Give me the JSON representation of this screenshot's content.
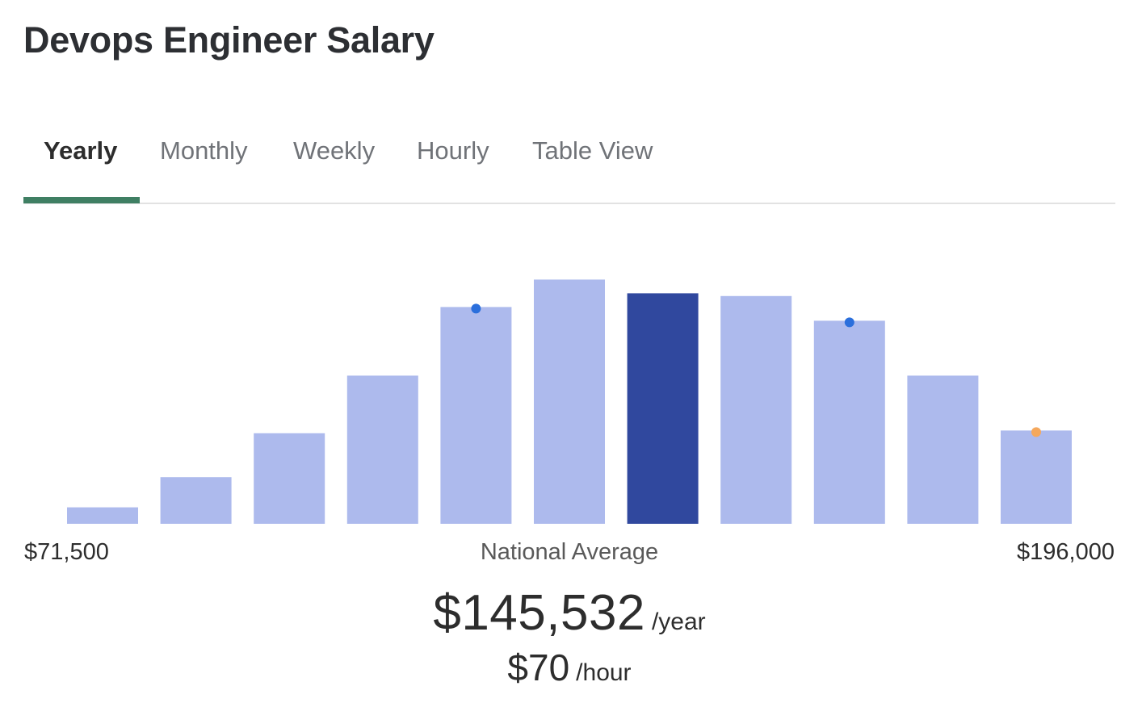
{
  "page": {
    "title": "Devops Engineer Salary"
  },
  "tabs": [
    {
      "label": "Yearly",
      "active": true
    },
    {
      "label": "Monthly",
      "active": false
    },
    {
      "label": "Weekly",
      "active": false
    },
    {
      "label": "Hourly",
      "active": false
    },
    {
      "label": "Table View",
      "active": false
    }
  ],
  "chart_data": {
    "type": "bar",
    "categories": [
      "",
      "",
      "",
      "",
      "",
      "",
      "",
      "",
      "",
      "",
      ""
    ],
    "values": [
      6,
      17,
      33,
      54,
      79,
      89,
      84,
      83,
      74,
      54,
      34
    ],
    "highlight_index": 6,
    "markers": [
      {
        "index": 4,
        "color": "#2b6fdc"
      },
      {
        "index": 8,
        "color": "#2b6fdc"
      },
      {
        "index": 10,
        "color": "#f5a85c"
      }
    ],
    "ylim": [
      0,
      100
    ],
    "colors": {
      "bar": "#adbaed",
      "highlight": "#30489e"
    },
    "min_label": "$71,500",
    "max_label": "$196,000",
    "center_label": "National Average",
    "grid": false
  },
  "summary": {
    "yearly_value": "$145,532",
    "yearly_unit": "/year",
    "hourly_value": "$70",
    "hourly_unit": "/hour"
  }
}
